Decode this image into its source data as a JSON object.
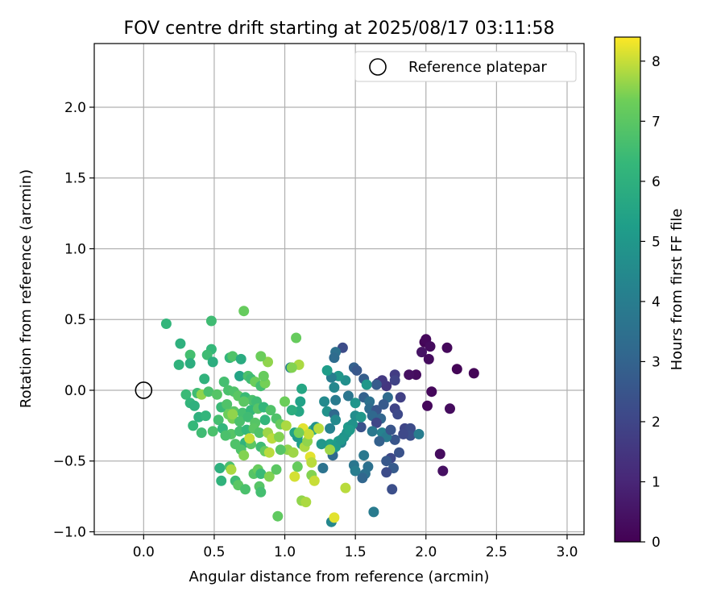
{
  "chart_data": {
    "type": "scatter",
    "title": "FOV centre drift starting at 2025/08/17 03:11:58",
    "xlabel": "Angular distance from reference (arcmin)",
    "ylabel": "Rotation from reference (arcmin)",
    "xlim": [
      -0.35,
      3.12
    ],
    "ylim": [
      -1.02,
      2.45
    ],
    "xticks": [
      "0.0",
      "0.5",
      "1.0",
      "1.5",
      "2.0",
      "2.5",
      "3.0"
    ],
    "xtick_values": [
      0,
      0.5,
      1,
      1.5,
      2,
      2.5,
      3
    ],
    "yticks": [
      "−1.0",
      "−0.5",
      "0.0",
      "0.5",
      "1.0",
      "1.5",
      "2.0"
    ],
    "ytick_values": [
      -1,
      -0.5,
      0,
      0.5,
      1,
      1.5,
      2
    ],
    "grid": true,
    "legend": {
      "position": "top-right",
      "label": "Reference platepar"
    },
    "reference_point": {
      "x": 0.0,
      "y": 0.0
    },
    "colorbar": {
      "label": "Hours from first FF file",
      "range": [
        0,
        8.4
      ],
      "ticks": [
        "0",
        "1",
        "2",
        "3",
        "4",
        "5",
        "6",
        "7",
        "8"
      ],
      "tick_values": [
        0,
        1,
        2,
        3,
        4,
        5,
        6,
        7,
        8
      ],
      "colormap": "viridis"
    },
    "points": [
      {
        "x": 1.99,
        "y": 0.34,
        "c": 0.1
      },
      {
        "x": 2.0,
        "y": 0.36,
        "c": 0.2
      },
      {
        "x": 2.03,
        "y": 0.31,
        "c": 0.3
      },
      {
        "x": 1.97,
        "y": 0.27,
        "c": 0.5
      },
      {
        "x": 2.02,
        "y": 0.22,
        "c": 0.3
      },
      {
        "x": 2.15,
        "y": 0.3,
        "c": 0.2
      },
      {
        "x": 2.22,
        "y": 0.15,
        "c": 0.1
      },
      {
        "x": 2.34,
        "y": 0.12,
        "c": 0.1
      },
      {
        "x": 1.93,
        "y": 0.11,
        "c": 0.3
      },
      {
        "x": 1.88,
        "y": 0.11,
        "c": 0.4
      },
      {
        "x": 2.04,
        "y": -0.01,
        "c": 0.2
      },
      {
        "x": 2.01,
        "y": -0.11,
        "c": 0.2
      },
      {
        "x": 2.17,
        "y": -0.13,
        "c": 0.3
      },
      {
        "x": 2.1,
        "y": -0.45,
        "c": 0.3
      },
      {
        "x": 2.12,
        "y": -0.57,
        "c": 0.4
      },
      {
        "x": 1.78,
        "y": 0.11,
        "c": 1.7
      },
      {
        "x": 1.78,
        "y": 0.07,
        "c": 1.9
      },
      {
        "x": 1.72,
        "y": 0.03,
        "c": 1.5
      },
      {
        "x": 1.66,
        "y": 0.05,
        "c": 1.3
      },
      {
        "x": 1.69,
        "y": 0.07,
        "c": 1.6
      },
      {
        "x": 1.82,
        "y": -0.05,
        "c": 1.8
      },
      {
        "x": 1.78,
        "y": -0.13,
        "c": 1.9
      },
      {
        "x": 1.8,
        "y": -0.17,
        "c": 2.1
      },
      {
        "x": 1.85,
        "y": -0.27,
        "c": 2.0
      },
      {
        "x": 1.89,
        "y": -0.27,
        "c": 2.2
      },
      {
        "x": 1.89,
        "y": -0.32,
        "c": 2.3
      },
      {
        "x": 1.84,
        "y": -0.31,
        "c": 2.1
      },
      {
        "x": 1.78,
        "y": -0.35,
        "c": 2.5
      },
      {
        "x": 1.81,
        "y": -0.44,
        "c": 2.4
      },
      {
        "x": 1.75,
        "y": -0.48,
        "c": 2.1
      },
      {
        "x": 1.72,
        "y": -0.5,
        "c": 2.6
      },
      {
        "x": 1.77,
        "y": -0.55,
        "c": 2.7
      },
      {
        "x": 1.72,
        "y": -0.58,
        "c": 2.2
      },
      {
        "x": 1.76,
        "y": -0.7,
        "c": 2.3
      },
      {
        "x": 1.41,
        "y": 0.3,
        "c": 2.2
      },
      {
        "x": 1.36,
        "y": 0.27,
        "c": 3.5
      },
      {
        "x": 1.35,
        "y": 0.23,
        "c": 3.3
      },
      {
        "x": 1.49,
        "y": 0.16,
        "c": 2.9
      },
      {
        "x": 1.51,
        "y": 0.14,
        "c": 2.6
      },
      {
        "x": 1.56,
        "y": 0.08,
        "c": 2.8
      },
      {
        "x": 1.65,
        "y": 0.04,
        "c": 2.7
      },
      {
        "x": 1.43,
        "y": 0.07,
        "c": 4.7
      },
      {
        "x": 1.38,
        "y": 0.1,
        "c": 5.0
      },
      {
        "x": 1.33,
        "y": 0.09,
        "c": 4.0
      },
      {
        "x": 1.35,
        "y": 0.02,
        "c": 4.4
      },
      {
        "x": 1.3,
        "y": 0.14,
        "c": 5.2
      },
      {
        "x": 1.45,
        "y": -0.04,
        "c": 3.7
      },
      {
        "x": 1.5,
        "y": -0.09,
        "c": 4.9
      },
      {
        "x": 1.56,
        "y": -0.05,
        "c": 2.9
      },
      {
        "x": 1.6,
        "y": -0.08,
        "c": 3.5
      },
      {
        "x": 1.6,
        "y": -0.13,
        "c": 3.3
      },
      {
        "x": 1.65,
        "y": -0.14,
        "c": 2.5
      },
      {
        "x": 1.62,
        "y": -0.18,
        "c": 3.2
      },
      {
        "x": 1.68,
        "y": -0.2,
        "c": 3.1
      },
      {
        "x": 1.65,
        "y": -0.23,
        "c": 2.0
      },
      {
        "x": 1.69,
        "y": -0.3,
        "c": 4.2
      },
      {
        "x": 1.72,
        "y": -0.33,
        "c": 3.9
      },
      {
        "x": 1.67,
        "y": -0.36,
        "c": 2.9
      },
      {
        "x": 1.62,
        "y": -0.29,
        "c": 3.8
      },
      {
        "x": 1.54,
        "y": -0.26,
        "c": 2.4
      },
      {
        "x": 1.36,
        "y": -0.07,
        "c": 3.9
      },
      {
        "x": 1.28,
        "y": -0.08,
        "c": 4.5
      },
      {
        "x": 1.3,
        "y": -0.15,
        "c": 4.8
      },
      {
        "x": 1.35,
        "y": -0.17,
        "c": 3.2
      },
      {
        "x": 1.36,
        "y": -0.21,
        "c": 4.5
      },
      {
        "x": 1.32,
        "y": -0.27,
        "c": 4.2
      },
      {
        "x": 1.42,
        "y": -0.33,
        "c": 4.7
      },
      {
        "x": 1.38,
        "y": -0.36,
        "c": 5.2
      },
      {
        "x": 1.34,
        "y": -0.42,
        "c": 3.6
      },
      {
        "x": 1.34,
        "y": -0.46,
        "c": 3.2
      },
      {
        "x": 1.45,
        "y": -0.26,
        "c": 5.1
      },
      {
        "x": 1.48,
        "y": -0.24,
        "c": 4.8
      },
      {
        "x": 1.5,
        "y": -0.18,
        "c": 4.6
      },
      {
        "x": 1.54,
        "y": -0.19,
        "c": 5.0
      },
      {
        "x": 1.4,
        "y": -0.37,
        "c": 4.3
      },
      {
        "x": 1.49,
        "y": -0.53,
        "c": 3.7
      },
      {
        "x": 1.5,
        "y": -0.57,
        "c": 4.0
      },
      {
        "x": 1.56,
        "y": -0.46,
        "c": 3.8
      },
      {
        "x": 1.57,
        "y": -0.59,
        "c": 3.5
      },
      {
        "x": 1.59,
        "y": -0.54,
        "c": 3.5
      },
      {
        "x": 1.55,
        "y": -0.62,
        "c": 3.1
      },
      {
        "x": 1.63,
        "y": -0.86,
        "c": 3.9
      },
      {
        "x": 1.33,
        "y": -0.93,
        "c": 4.4
      },
      {
        "x": 1.27,
        "y": -0.55,
        "c": 3.6
      },
      {
        "x": 1.32,
        "y": -0.38,
        "c": 5.3
      },
      {
        "x": 1.36,
        "y": -0.4,
        "c": 5.1
      },
      {
        "x": 1.4,
        "y": -0.35,
        "c": 5.0
      },
      {
        "x": 1.44,
        "y": -0.3,
        "c": 4.9
      },
      {
        "x": 1.46,
        "y": -0.28,
        "c": 5.1
      },
      {
        "x": 1.26,
        "y": -0.38,
        "c": 5.0
      },
      {
        "x": 1.11,
        "y": -0.08,
        "c": 5.4
      },
      {
        "x": 1.1,
        "y": -0.15,
        "c": 5.6
      },
      {
        "x": 1.05,
        "y": -0.14,
        "c": 5.9
      },
      {
        "x": 1.12,
        "y": 0.01,
        "c": 5.6
      },
      {
        "x": 1.04,
        "y": 0.16,
        "c": 4.2
      },
      {
        "x": 1.07,
        "y": -0.3,
        "c": 5.5
      },
      {
        "x": 1.09,
        "y": -0.33,
        "c": 5.1
      },
      {
        "x": 1.12,
        "y": -0.38,
        "c": 5.3
      },
      {
        "x": 1.2,
        "y": -0.28,
        "c": 6.0
      },
      {
        "x": 1.22,
        "y": -0.26,
        "c": 4.8
      },
      {
        "x": 1.58,
        "y": 0.04,
        "c": 5.0
      },
      {
        "x": 1.73,
        "y": -0.05,
        "c": 3.3
      },
      {
        "x": 1.7,
        "y": -0.1,
        "c": 2.7
      },
      {
        "x": 1.75,
        "y": -0.28,
        "c": 2.5
      },
      {
        "x": 1.95,
        "y": -0.31,
        "c": 4.0
      },
      {
        "x": 0.16,
        "y": 0.47,
        "c": 6.2
      },
      {
        "x": 0.26,
        "y": 0.33,
        "c": 6.0
      },
      {
        "x": 0.33,
        "y": 0.25,
        "c": 6.6
      },
      {
        "x": 0.33,
        "y": 0.19,
        "c": 5.9
      },
      {
        "x": 0.25,
        "y": 0.18,
        "c": 6.1
      },
      {
        "x": 0.48,
        "y": 0.49,
        "c": 6.5
      },
      {
        "x": 0.48,
        "y": 0.29,
        "c": 6.3
      },
      {
        "x": 0.45,
        "y": 0.25,
        "c": 6.5
      },
      {
        "x": 0.49,
        "y": 0.2,
        "c": 5.9
      },
      {
        "x": 0.61,
        "y": 0.23,
        "c": 6.2
      },
      {
        "x": 0.63,
        "y": 0.24,
        "c": 6.8
      },
      {
        "x": 0.69,
        "y": 0.22,
        "c": 5.8
      },
      {
        "x": 0.71,
        "y": 0.56,
        "c": 7.2
      },
      {
        "x": 0.68,
        "y": 0.1,
        "c": 5.5
      },
      {
        "x": 0.43,
        "y": 0.08,
        "c": 6.1
      },
      {
        "x": 0.57,
        "y": 0.06,
        "c": 6.6
      },
      {
        "x": 0.74,
        "y": 0.1,
        "c": 6.7
      },
      {
        "x": 0.76,
        "y": 0.08,
        "c": 6.5
      },
      {
        "x": 0.79,
        "y": 0.06,
        "c": 7.3
      },
      {
        "x": 0.83,
        "y": 0.03,
        "c": 6.6
      },
      {
        "x": 0.86,
        "y": 0.05,
        "c": 7.4
      },
      {
        "x": 0.85,
        "y": 0.1,
        "c": 7.2
      },
      {
        "x": 0.88,
        "y": 0.2,
        "c": 7.6
      },
      {
        "x": 0.83,
        "y": 0.24,
        "c": 7.3
      },
      {
        "x": 1.08,
        "y": 0.37,
        "c": 7.2
      },
      {
        "x": 1.1,
        "y": 0.18,
        "c": 7.8
      },
      {
        "x": 1.05,
        "y": 0.16,
        "c": 7.5
      },
      {
        "x": 0.3,
        "y": -0.03,
        "c": 6.4
      },
      {
        "x": 0.38,
        "y": -0.02,
        "c": 6.5
      },
      {
        "x": 0.41,
        "y": -0.03,
        "c": 7.6
      },
      {
        "x": 0.46,
        "y": -0.01,
        "c": 6.7
      },
      {
        "x": 0.52,
        "y": -0.03,
        "c": 6.9
      },
      {
        "x": 0.6,
        "y": 0.0,
        "c": 6.7
      },
      {
        "x": 0.64,
        "y": -0.01,
        "c": 6.8
      },
      {
        "x": 0.67,
        "y": -0.04,
        "c": 7.0
      },
      {
        "x": 0.72,
        "y": -0.05,
        "c": 6.4
      },
      {
        "x": 0.77,
        "y": -0.07,
        "c": 6.7
      },
      {
        "x": 0.8,
        "y": -0.08,
        "c": 6.5
      },
      {
        "x": 0.33,
        "y": -0.09,
        "c": 6.2
      },
      {
        "x": 0.36,
        "y": -0.11,
        "c": 6.0
      },
      {
        "x": 0.55,
        "y": -0.12,
        "c": 6.4
      },
      {
        "x": 0.59,
        "y": -0.1,
        "c": 6.8
      },
      {
        "x": 0.64,
        "y": -0.15,
        "c": 7.0
      },
      {
        "x": 0.7,
        "y": -0.16,
        "c": 6.6
      },
      {
        "x": 0.76,
        "y": -0.14,
        "c": 6.3
      },
      {
        "x": 0.81,
        "y": -0.13,
        "c": 6.9
      },
      {
        "x": 0.85,
        "y": -0.12,
        "c": 6.2
      },
      {
        "x": 0.9,
        "y": -0.14,
        "c": 6.8
      },
      {
        "x": 0.39,
        "y": -0.19,
        "c": 6.0
      },
      {
        "x": 0.44,
        "y": -0.18,
        "c": 6.2
      },
      {
        "x": 0.53,
        "y": -0.21,
        "c": 6.6
      },
      {
        "x": 0.6,
        "y": -0.17,
        "c": 7.3
      },
      {
        "x": 0.63,
        "y": -0.2,
        "c": 7.4
      },
      {
        "x": 0.68,
        "y": -0.22,
        "c": 6.7
      },
      {
        "x": 0.74,
        "y": -0.19,
        "c": 6.5
      },
      {
        "x": 0.79,
        "y": -0.23,
        "c": 6.9
      },
      {
        "x": 0.86,
        "y": -0.21,
        "c": 6.2
      },
      {
        "x": 0.94,
        "y": -0.2,
        "c": 6.8
      },
      {
        "x": 0.97,
        "y": -0.24,
        "c": 7.2
      },
      {
        "x": 0.35,
        "y": -0.25,
        "c": 6.3
      },
      {
        "x": 0.49,
        "y": -0.29,
        "c": 6.7
      },
      {
        "x": 0.56,
        "y": -0.27,
        "c": 6.2
      },
      {
        "x": 0.62,
        "y": -0.31,
        "c": 6.9
      },
      {
        "x": 0.68,
        "y": -0.29,
        "c": 6.6
      },
      {
        "x": 0.73,
        "y": -0.28,
        "c": 6.3
      },
      {
        "x": 0.78,
        "y": -0.27,
        "c": 7.0
      },
      {
        "x": 0.82,
        "y": -0.3,
        "c": 6.8
      },
      {
        "x": 0.88,
        "y": -0.3,
        "c": 7.7
      },
      {
        "x": 0.91,
        "y": -0.34,
        "c": 7.9
      },
      {
        "x": 0.96,
        "y": -0.33,
        "c": 7.5
      },
      {
        "x": 0.41,
        "y": -0.3,
        "c": 6.5
      },
      {
        "x": 0.58,
        "y": -0.32,
        "c": 6.7
      },
      {
        "x": 0.65,
        "y": -0.38,
        "c": 6.8
      },
      {
        "x": 0.72,
        "y": -0.37,
        "c": 6.1
      },
      {
        "x": 0.76,
        "y": -0.38,
        "c": 7.0
      },
      {
        "x": 0.83,
        "y": -0.4,
        "c": 6.5
      },
      {
        "x": 0.86,
        "y": -0.43,
        "c": 7.2
      },
      {
        "x": 0.89,
        "y": -0.44,
        "c": 7.9
      },
      {
        "x": 0.69,
        "y": -0.42,
        "c": 6.8
      },
      {
        "x": 0.71,
        "y": -0.46,
        "c": 7.5
      },
      {
        "x": 0.54,
        "y": -0.55,
        "c": 6.0
      },
      {
        "x": 0.61,
        "y": -0.54,
        "c": 6.7
      },
      {
        "x": 0.62,
        "y": -0.56,
        "c": 7.8
      },
      {
        "x": 0.55,
        "y": -0.64,
        "c": 6.1
      },
      {
        "x": 0.65,
        "y": -0.64,
        "c": 6.5
      },
      {
        "x": 0.67,
        "y": -0.67,
        "c": 7.0
      },
      {
        "x": 0.72,
        "y": -0.7,
        "c": 6.7
      },
      {
        "x": 0.78,
        "y": -0.59,
        "c": 6.9
      },
      {
        "x": 0.81,
        "y": -0.56,
        "c": 7.2
      },
      {
        "x": 0.83,
        "y": -0.59,
        "c": 6.4
      },
      {
        "x": 0.82,
        "y": -0.68,
        "c": 6.9
      },
      {
        "x": 0.83,
        "y": -0.72,
        "c": 6.6
      },
      {
        "x": 0.89,
        "y": -0.61,
        "c": 7.5
      },
      {
        "x": 0.94,
        "y": -0.56,
        "c": 7.0
      },
      {
        "x": 0.95,
        "y": -0.89,
        "c": 7.1
      },
      {
        "x": 1.0,
        "y": -0.08,
        "c": 7.3
      },
      {
        "x": 1.02,
        "y": -0.42,
        "c": 7.6
      },
      {
        "x": 1.06,
        "y": -0.44,
        "c": 7.7
      },
      {
        "x": 1.09,
        "y": -0.54,
        "c": 7.2
      },
      {
        "x": 1.07,
        "y": -0.61,
        "c": 8.1
      },
      {
        "x": 1.14,
        "y": -0.4,
        "c": 7.8
      },
      {
        "x": 1.16,
        "y": -0.36,
        "c": 7.6
      },
      {
        "x": 1.18,
        "y": -0.47,
        "c": 8.2
      },
      {
        "x": 1.19,
        "y": -0.51,
        "c": 7.9
      },
      {
        "x": 1.19,
        "y": -0.6,
        "c": 7.5
      },
      {
        "x": 1.21,
        "y": -0.64,
        "c": 8.0
      },
      {
        "x": 1.12,
        "y": -0.78,
        "c": 7.6
      },
      {
        "x": 1.15,
        "y": -0.79,
        "c": 7.8
      },
      {
        "x": 1.13,
        "y": -0.27,
        "c": 8.2
      },
      {
        "x": 1.17,
        "y": -0.31,
        "c": 8.0
      },
      {
        "x": 1.1,
        "y": -0.3,
        "c": 7.4
      },
      {
        "x": 1.24,
        "y": -0.27,
        "c": 7.9
      },
      {
        "x": 1.32,
        "y": -0.42,
        "c": 7.7
      },
      {
        "x": 1.43,
        "y": -0.69,
        "c": 7.9
      },
      {
        "x": 1.35,
        "y": -0.9,
        "c": 8.2
      },
      {
        "x": 1.01,
        "y": -0.25,
        "c": 7.8
      },
      {
        "x": 0.97,
        "y": -0.42,
        "c": 6.9
      },
      {
        "x": 0.75,
        "y": -0.34,
        "c": 8.0
      },
      {
        "x": 0.63,
        "y": -0.17,
        "c": 7.6
      },
      {
        "x": 0.71,
        "y": -0.08,
        "c": 7.0
      }
    ]
  }
}
